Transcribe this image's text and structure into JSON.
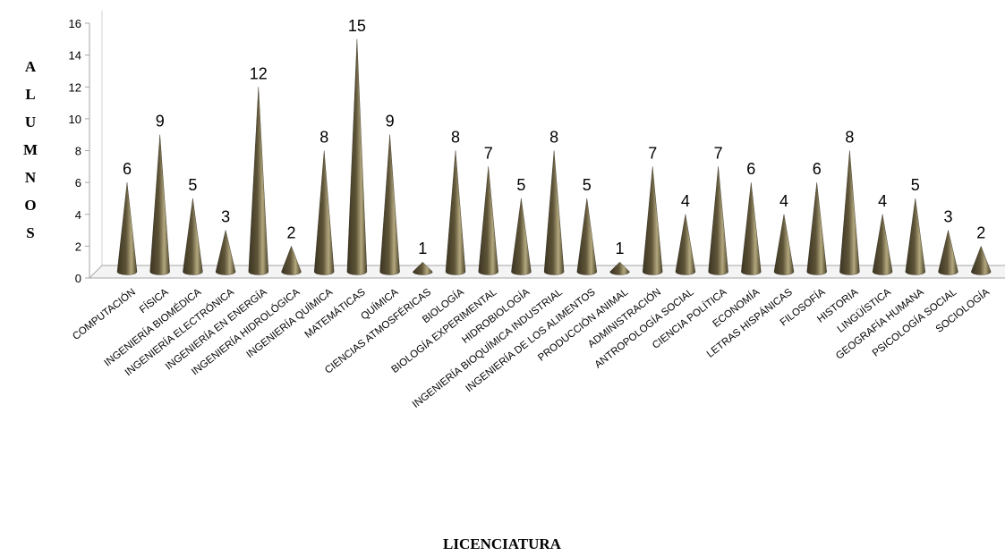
{
  "chart_data": {
    "type": "bar",
    "xlabel": "LICENCIATURA",
    "ylabel": "ALUMNOS",
    "ylim": [
      0,
      16
    ],
    "yticks": [
      0,
      2,
      4,
      6,
      8,
      10,
      12,
      14,
      16
    ],
    "grid": false,
    "legend": "none",
    "categories": [
      "COMPUTACIÓN",
      "FÍSICA",
      "INGENIERÍA BIOMÉDICA",
      "INGENIERÍA ELECTRÓNICA",
      "INGENIERÍA EN ENERGÍA",
      "INGENIERÍA HIDROLÓGICA",
      "INGENIERÍA QUÍMICA",
      "MATEMÁTICAS",
      "QUÍMICA",
      "CIENCIAS ATMOSFÉRICAS",
      "BIOLOGÍA",
      "BIOLOGÍA EXPERIMENTAL",
      "HIDROBIOLOGÍA",
      "INGENIERÍA BIOQUÍMICA INDUSTRIAL",
      "INGENIERÍA DE LOS ALIMENTOS",
      "PRODUCCIÓN ANIMAL",
      "ADMINISTRACIÓN",
      "ANTROPOLOGÍA SOCIAL",
      "CIENCIA POLÍTICA",
      "ECONOMÍA",
      "LETRAS HISPÁNICAS",
      "FILOSOFÍA",
      "HISTORIA",
      "LINGÜÍSTICA",
      "GEOGRAFÍA HUMANA",
      "PSICOLOGÍA SOCIAL",
      "SOCIOLOGÍA"
    ],
    "values": [
      6,
      9,
      5,
      3,
      12,
      2,
      8,
      15,
      9,
      1,
      8,
      7,
      5,
      8,
      5,
      1,
      7,
      4,
      7,
      6,
      4,
      6,
      8,
      4,
      5,
      3,
      2
    ],
    "colors": {
      "cone_dark": "#3b3421",
      "cone_mid": "#6b6040",
      "cone_light": "#b3a87e",
      "axis": "#a6a6a6"
    }
  }
}
